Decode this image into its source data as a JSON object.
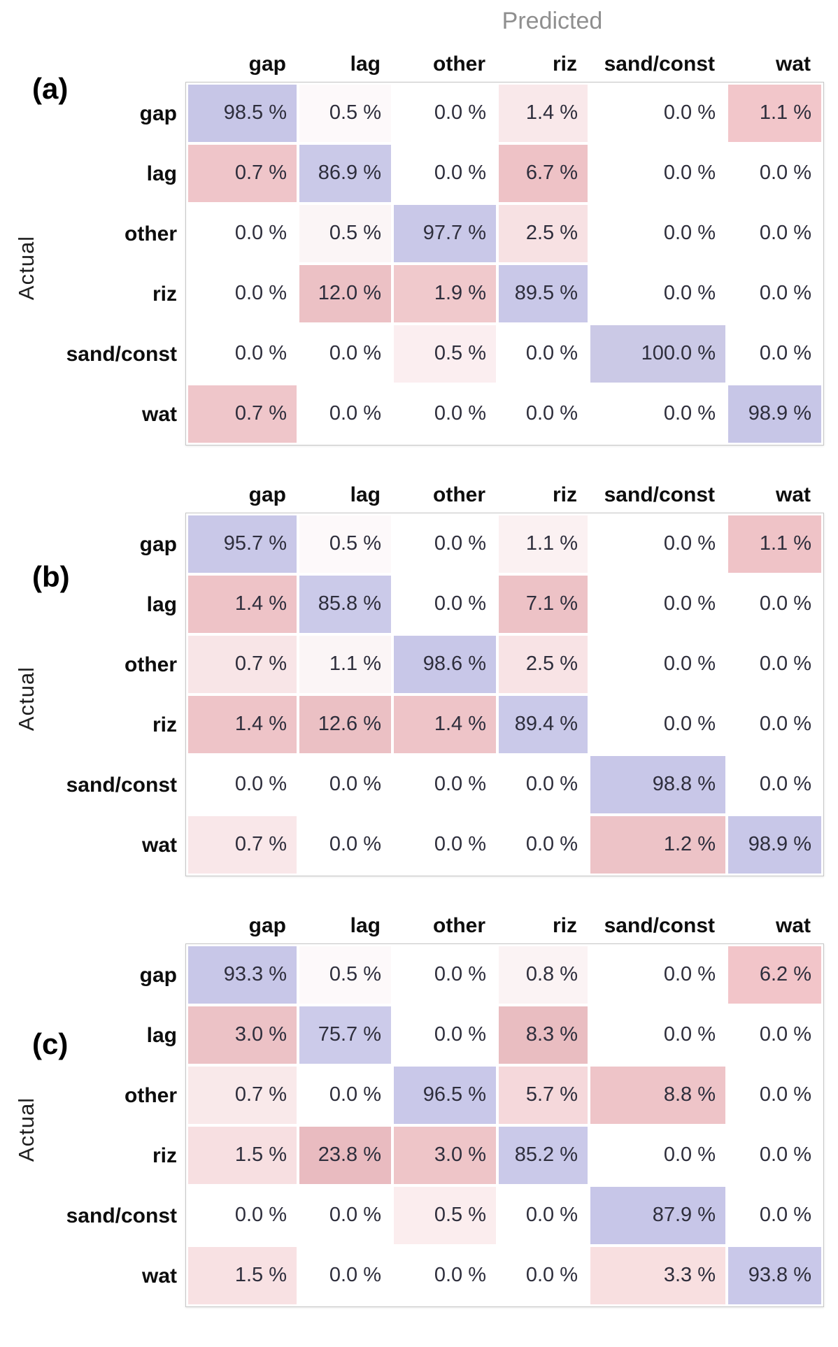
{
  "axis_titles": {
    "predicted": "Predicted",
    "actual": "Actual"
  },
  "columns": [
    "gap",
    "lag",
    "other",
    "riz",
    "sand/const",
    "wat"
  ],
  "row_labels": [
    "gap",
    "lag",
    "other",
    "riz",
    "sand/const",
    "wat"
  ],
  "unit": "%",
  "palette": {
    "diagonal_purple": "#c9c8e8",
    "offdiag_pink_strong": "#ecc1c5",
    "offdiag_pink_light": "#f8e4e6",
    "zero_white": "#ffffff"
  },
  "panels": [
    {
      "label": "(a)",
      "cells": [
        [
          "98.5 %",
          "0.5 %",
          "0.0 %",
          "1.4 %",
          "0.0 %",
          "1.1 %"
        ],
        [
          "0.7 %",
          "86.9 %",
          "0.0 %",
          "6.7 %",
          "0.0 %",
          "0.0 %"
        ],
        [
          "0.0 %",
          "0.5 %",
          "97.7 %",
          "2.5 %",
          "0.0 %",
          "0.0 %"
        ],
        [
          "0.0 %",
          "12.0 %",
          "1.9 %",
          "89.5 %",
          "0.0 %",
          "0.0 %"
        ],
        [
          "0.0 %",
          "0.0 %",
          "0.5 %",
          "0.0 %",
          "100.0 %",
          "0.0 %"
        ],
        [
          "0.7 %",
          "0.0 %",
          "0.0 %",
          "0.0 %",
          "0.0 %",
          "98.9 %"
        ]
      ],
      "cell_colors": [
        [
          "#c7c6e7",
          "#fdf9fa",
          "#ffffff",
          "#f9e8ea",
          "#ffffff",
          "#f2c6ca"
        ],
        [
          "#efc5c9",
          "#cac9e8",
          "#ffffff",
          "#eec2c6",
          "#ffffff",
          "#ffffff"
        ],
        [
          "#ffffff",
          "#fbf5f6",
          "#c9c8e8",
          "#f7e1e3",
          "#ffffff",
          "#ffffff"
        ],
        [
          "#ffffff",
          "#ecc1c5",
          "#f0c9cc",
          "#c9c8e8",
          "#ffffff",
          "#ffffff"
        ],
        [
          "#ffffff",
          "#ffffff",
          "#fbeef0",
          "#ffffff",
          "#cbc9e6",
          "#ffffff"
        ],
        [
          "#efc6ca",
          "#ffffff",
          "#ffffff",
          "#ffffff",
          "#ffffff",
          "#c7c6e7"
        ]
      ]
    },
    {
      "label": "(b)",
      "cells": [
        [
          "95.7 %",
          "0.5 %",
          "0.0 %",
          "1.1 %",
          "0.0 %",
          "1.1 %"
        ],
        [
          "1.4 %",
          "85.8 %",
          "0.0 %",
          "7.1 %",
          "0.0 %",
          "0.0 %"
        ],
        [
          "0.7 %",
          "1.1 %",
          "98.6 %",
          "2.5 %",
          "0.0 %",
          "0.0 %"
        ],
        [
          "1.4 %",
          "12.6 %",
          "1.4 %",
          "89.4 %",
          "0.0 %",
          "0.0 %"
        ],
        [
          "0.0 %",
          "0.0 %",
          "0.0 %",
          "0.0 %",
          "98.8 %",
          "0.0 %"
        ],
        [
          "0.7 %",
          "0.0 %",
          "0.0 %",
          "0.0 %",
          "1.2 %",
          "98.9 %"
        ]
      ],
      "cell_colors": [
        [
          "#c9c8e8",
          "#fdf9fa",
          "#ffffff",
          "#fbf1f2",
          "#ffffff",
          "#efc3c7"
        ],
        [
          "#eec3c7",
          "#cbcae9",
          "#ffffff",
          "#edc2c6",
          "#ffffff",
          "#ffffff"
        ],
        [
          "#f8e5e7",
          "#fbf5f6",
          "#c8c7e8",
          "#f8e3e5",
          "#ffffff",
          "#ffffff"
        ],
        [
          "#eec4c8",
          "#ebc0c4",
          "#eec4c8",
          "#cac9e9",
          "#ffffff",
          "#ffffff"
        ],
        [
          "#ffffff",
          "#ffffff",
          "#ffffff",
          "#ffffff",
          "#c8c7e8",
          "#ffffff"
        ],
        [
          "#f9e7e9",
          "#ffffff",
          "#ffffff",
          "#ffffff",
          "#edc3c7",
          "#c8c7e8"
        ]
      ]
    },
    {
      "label": "(c)",
      "cells": [
        [
          "93.3 %",
          "0.5 %",
          "0.0 %",
          "0.8 %",
          "0.0 %",
          "6.2 %"
        ],
        [
          "3.0 %",
          "75.7 %",
          "0.0 %",
          "8.3 %",
          "0.0 %",
          "0.0 %"
        ],
        [
          "0.7 %",
          "0.0 %",
          "96.5 %",
          "5.7 %",
          "8.8 %",
          "0.0 %"
        ],
        [
          "1.5 %",
          "23.8 %",
          "3.0 %",
          "85.2 %",
          "0.0 %",
          "0.0 %"
        ],
        [
          "0.0 %",
          "0.0 %",
          "0.5 %",
          "0.0 %",
          "87.9 %",
          "0.0 %"
        ],
        [
          "1.5 %",
          "0.0 %",
          "0.0 %",
          "0.0 %",
          "3.3 %",
          "93.8 %"
        ]
      ],
      "cell_colors": [
        [
          "#c8c7e8",
          "#fdf9fa",
          "#ffffff",
          "#fbf3f4",
          "#ffffff",
          "#f2c5c9"
        ],
        [
          "#ecc2c6",
          "#cccbea",
          "#ffffff",
          "#e9bdc1",
          "#ffffff",
          "#ffffff"
        ],
        [
          "#f9e9ea",
          "#ffffff",
          "#c9c8e9",
          "#f5d8db",
          "#eec4c8",
          "#ffffff"
        ],
        [
          "#f7dfe1",
          "#e9bbc0",
          "#eec5c8",
          "#cac9e9",
          "#ffffff",
          "#ffffff"
        ],
        [
          "#ffffff",
          "#ffffff",
          "#fbedee",
          "#ffffff",
          "#c7c6e8",
          "#ffffff"
        ],
        [
          "#f8e1e3",
          "#ffffff",
          "#ffffff",
          "#ffffff",
          "#f8dfe0",
          "#c9c8e9"
        ]
      ]
    }
  ],
  "chart_data": [
    {
      "type": "heatmap",
      "title": "(a)",
      "xlabel": "Predicted",
      "ylabel": "Actual",
      "columns": [
        "gap",
        "lag",
        "other",
        "riz",
        "sand/const",
        "wat"
      ],
      "rows": [
        "gap",
        "lag",
        "other",
        "riz",
        "sand/const",
        "wat"
      ],
      "unit": "%",
      "values": [
        [
          98.5,
          0.5,
          0.0,
          1.4,
          0.0,
          1.1
        ],
        [
          0.7,
          86.9,
          0.0,
          6.7,
          0.0,
          0.0
        ],
        [
          0.0,
          0.5,
          97.7,
          2.5,
          0.0,
          0.0
        ],
        [
          0.0,
          12.0,
          1.9,
          89.5,
          0.0,
          0.0
        ],
        [
          0.0,
          0.0,
          0.5,
          0.0,
          100.0,
          0.0
        ],
        [
          0.7,
          0.0,
          0.0,
          0.0,
          0.0,
          98.9
        ]
      ]
    },
    {
      "type": "heatmap",
      "title": "(b)",
      "xlabel": "Predicted",
      "ylabel": "Actual",
      "columns": [
        "gap",
        "lag",
        "other",
        "riz",
        "sand/const",
        "wat"
      ],
      "rows": [
        "gap",
        "lag",
        "other",
        "riz",
        "sand/const",
        "wat"
      ],
      "unit": "%",
      "values": [
        [
          95.7,
          0.5,
          0.0,
          1.1,
          0.0,
          1.1
        ],
        [
          1.4,
          85.8,
          0.0,
          7.1,
          0.0,
          0.0
        ],
        [
          0.7,
          1.1,
          98.6,
          2.5,
          0.0,
          0.0
        ],
        [
          1.4,
          12.6,
          1.4,
          89.4,
          0.0,
          0.0
        ],
        [
          0.0,
          0.0,
          0.0,
          0.0,
          98.8,
          0.0
        ],
        [
          0.7,
          0.0,
          0.0,
          0.0,
          1.2,
          98.9
        ]
      ]
    },
    {
      "type": "heatmap",
      "title": "(c)",
      "xlabel": "Predicted",
      "ylabel": "Actual",
      "columns": [
        "gap",
        "lag",
        "other",
        "riz",
        "sand/const",
        "wat"
      ],
      "rows": [
        "gap",
        "lag",
        "other",
        "riz",
        "sand/const",
        "wat"
      ],
      "unit": "%",
      "values": [
        [
          93.3,
          0.5,
          0.0,
          0.8,
          0.0,
          6.2
        ],
        [
          3.0,
          75.7,
          0.0,
          8.3,
          0.0,
          0.0
        ],
        [
          0.7,
          0.0,
          96.5,
          5.7,
          8.8,
          0.0
        ],
        [
          1.5,
          23.8,
          3.0,
          85.2,
          0.0,
          0.0
        ],
        [
          0.0,
          0.0,
          0.5,
          0.0,
          87.9,
          0.0
        ],
        [
          1.5,
          0.0,
          0.0,
          0.0,
          3.3,
          93.8
        ]
      ]
    }
  ]
}
